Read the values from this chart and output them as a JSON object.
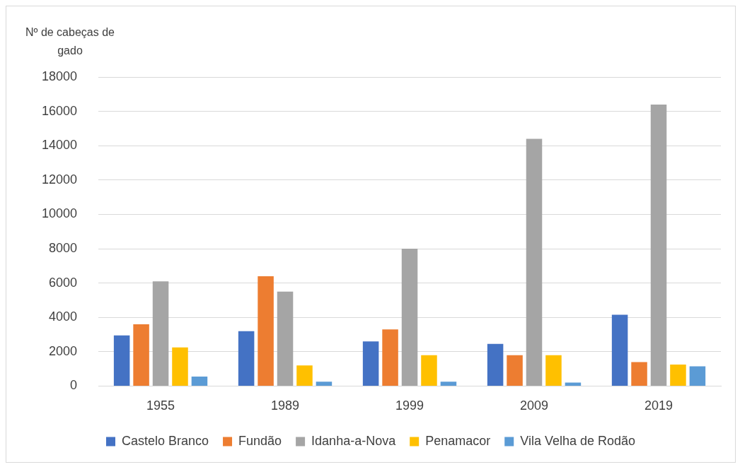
{
  "chart_data": {
    "type": "bar",
    "ylabel": "Nº de cabeças de gado",
    "categories": [
      "1955",
      "1989",
      "1999",
      "2009",
      "2019"
    ],
    "series": [
      {
        "name": "Castelo Branco",
        "color": "#4472c4",
        "values": [
          2950,
          3200,
          2600,
          2450,
          4150
        ]
      },
      {
        "name": "Fundão",
        "color": "#ed7d31",
        "values": [
          3600,
          6400,
          3300,
          1800,
          1400
        ]
      },
      {
        "name": "Idanha-a-Nova",
        "color": "#a5a5a5",
        "values": [
          6100,
          5500,
          8000,
          14400,
          16400
        ]
      },
      {
        "name": "Penamacor",
        "color": "#ffc000",
        "values": [
          2250,
          1200,
          1800,
          1800,
          1250
        ]
      },
      {
        "name": "Vila Velha de Rodão",
        "color": "#5b9bd5",
        "values": [
          550,
          250,
          250,
          200,
          1150
        ]
      }
    ],
    "ylim": [
      0,
      18000
    ],
    "yticks": [
      0,
      2000,
      4000,
      6000,
      8000,
      10000,
      12000,
      14000,
      16000,
      18000
    ],
    "grid": "y",
    "legend": "bottom"
  }
}
